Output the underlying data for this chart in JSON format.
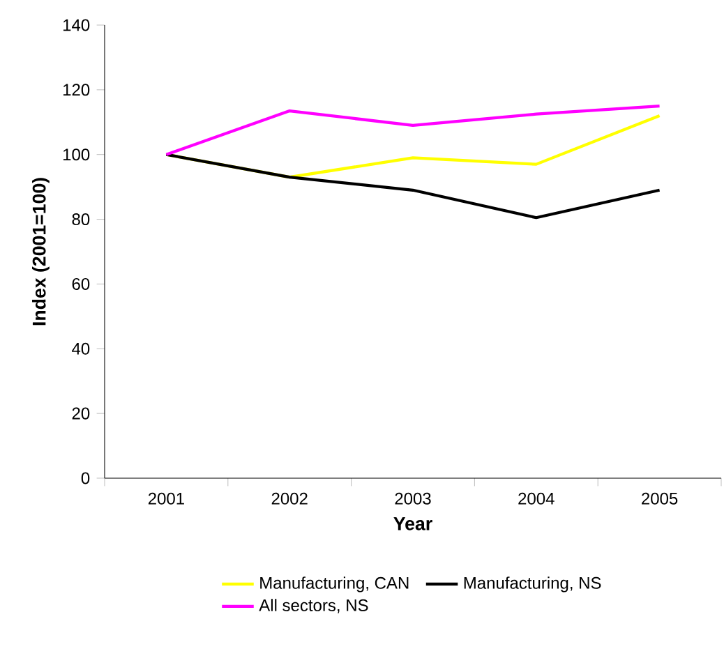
{
  "chart_data": {
    "type": "line",
    "xlabel": "Year",
    "ylabel": "Index (2001=100)",
    "categories": [
      "2001",
      "2002",
      "2003",
      "2004",
      "2005"
    ],
    "series": [
      {
        "name": "Manufacturing, CAN",
        "color": "#ffff00",
        "values": [
          100,
          93,
          99,
          97,
          112
        ]
      },
      {
        "name": "Manufacturing, NS",
        "color": "#000000",
        "values": [
          100,
          93,
          89,
          80.5,
          89
        ]
      },
      {
        "name": "All sectors, NS",
        "color": "#ff00ff",
        "values": [
          100,
          113.5,
          109,
          112.5,
          115
        ]
      }
    ],
    "ylim": [
      0,
      140
    ],
    "yticks": [
      0,
      20,
      40,
      60,
      80,
      100,
      120,
      140
    ],
    "grid": false,
    "legend": "bottom",
    "marker": "none",
    "line_style": "solid"
  }
}
